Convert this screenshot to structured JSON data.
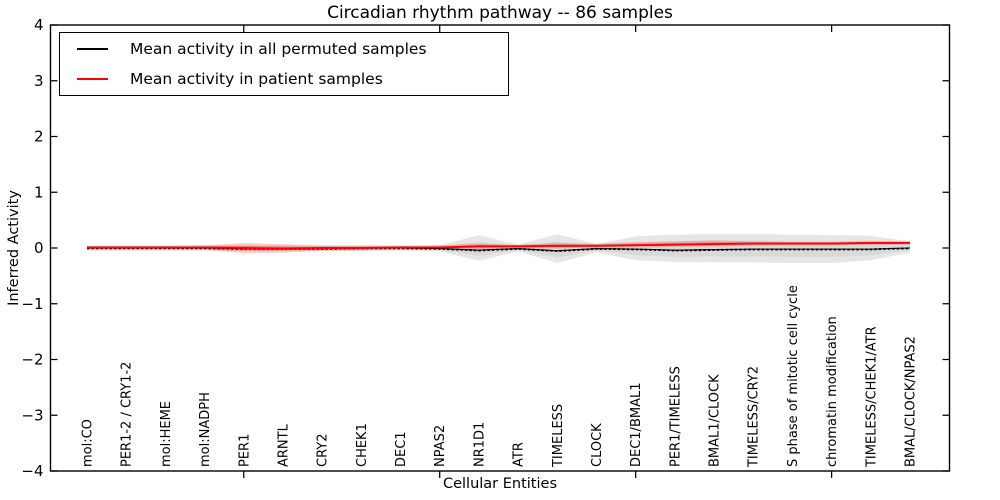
{
  "chart_data": {
    "type": "line",
    "title": "Circadian rhythm pathway -- 86 samples",
    "xlabel": "Cellular Entities",
    "ylabel": "Inferred Activity",
    "ylim": [
      -4,
      4
    ],
    "yticks": [
      4,
      3,
      2,
      1,
      0,
      -1,
      -2,
      -3,
      -4
    ],
    "grid": false,
    "legend_position": "upper-left",
    "categories": [
      "mol:CO",
      "PER1-2 / CRY1-2",
      "mol:HEME",
      "mol:NADPH",
      "PER1",
      "ARNTL",
      "CRY2",
      "CHEK1",
      "DEC1",
      "NPAS2",
      "NR1D1",
      "ATR",
      "TIMELESS",
      "CLOCK",
      "DEC1/BMAL1",
      "PER1/TIMELESS",
      "BMAL1/CLOCK",
      "TIMELESS/CRY2",
      "S phase of mitotic cell cycle",
      "chromatin modification",
      "TIMELESS/CHEK1/ATR",
      "BMAL/CLOCK/NPAS2"
    ],
    "x_major_tick_indices": [
      4,
      9,
      14,
      19
    ],
    "series": [
      {
        "name": "Mean activity in all permuted samples",
        "color": "#000000",
        "values": [
          0,
          0,
          0,
          0,
          -0.01,
          -0.01,
          -0.01,
          0,
          0,
          -0.01,
          -0.04,
          -0.01,
          -0.05,
          -0.01,
          -0.02,
          -0.04,
          -0.03,
          -0.02,
          -0.02,
          -0.02,
          -0.02,
          0
        ]
      },
      {
        "name": "Mean activity in patient samples",
        "color": "#ff0000",
        "values": [
          0.01,
          0.01,
          0.01,
          0.01,
          0.0,
          -0.01,
          0.0,
          0.0,
          0.01,
          0.01,
          0.03,
          0.03,
          0.04,
          0.04,
          0.05,
          0.06,
          0.07,
          0.08,
          0.08,
          0.08,
          0.09,
          0.09
        ]
      }
    ],
    "bands": [
      {
        "name": "permuted-samples-range",
        "color": "#bdbdbd",
        "upper": [
          0.04,
          0.04,
          0.04,
          0.05,
          0.05,
          0.05,
          0.04,
          0.04,
          0.04,
          0.05,
          0.23,
          0.06,
          0.25,
          0.07,
          0.21,
          0.24,
          0.25,
          0.25,
          0.24,
          0.23,
          0.22,
          0.12
        ],
        "lower": [
          -0.05,
          -0.05,
          -0.05,
          -0.05,
          -0.06,
          -0.06,
          -0.05,
          -0.05,
          -0.05,
          -0.06,
          -0.23,
          -0.06,
          -0.27,
          -0.08,
          -0.22,
          -0.25,
          -0.25,
          -0.26,
          -0.27,
          -0.27,
          -0.22,
          -0.08
        ]
      },
      {
        "name": "patient-samples-range",
        "color": "#ff0000",
        "upper": [
          0.04,
          0.04,
          0.04,
          0.05,
          0.09,
          0.07,
          0.05,
          0.05,
          0.04,
          0.05,
          0.08,
          0.06,
          0.09,
          0.08,
          0.1,
          0.12,
          0.14,
          0.12,
          0.11,
          0.11,
          0.13,
          0.12
        ],
        "lower": [
          -0.02,
          -0.02,
          -0.02,
          -0.03,
          -0.09,
          -0.08,
          -0.05,
          -0.04,
          -0.03,
          -0.02,
          -0.02,
          0.0,
          -0.01,
          0.01,
          0.01,
          0.02,
          0.03,
          0.04,
          0.05,
          0.05,
          0.05,
          0.06
        ]
      }
    ]
  }
}
